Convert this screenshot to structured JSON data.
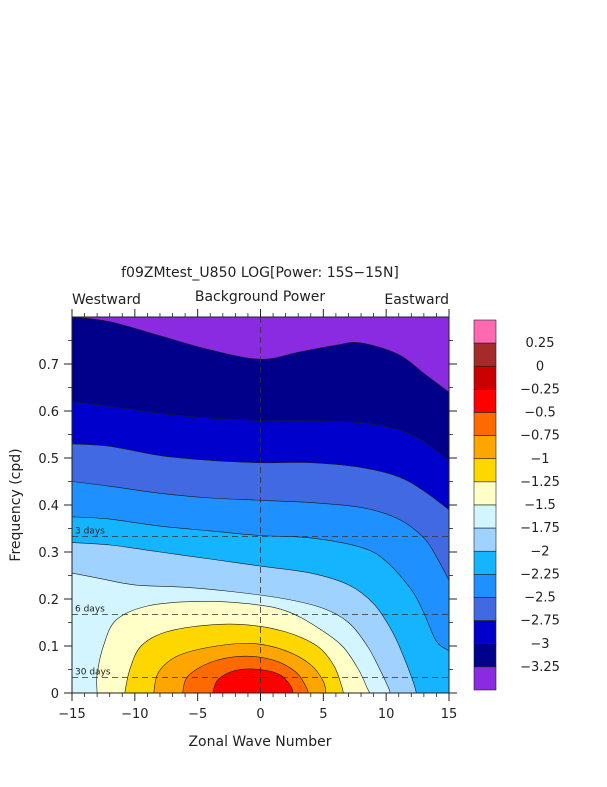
{
  "chart_data": {
    "type": "heatmap",
    "title": "f09ZMtest_U850 LOG[Power: 15S−15N]",
    "subtitle": "Background Power",
    "left_label": "Westward",
    "right_label": "Eastward",
    "xlabel": "Zonal Wave Number",
    "ylabel": "Frequency (cpd)",
    "xlim": [
      -15,
      15
    ],
    "ylim": [
      0,
      0.8
    ],
    "x_ticks": [
      "−15",
      "−10",
      "−5",
      "0",
      "5",
      "10",
      "15"
    ],
    "x_tick_values": [
      -15,
      -10,
      -5,
      0,
      5,
      10,
      15
    ],
    "y_ticks": [
      "0",
      "0.1",
      "0.2",
      "0.3",
      "0.4",
      "0.5",
      "0.6",
      "0.7"
    ],
    "y_tick_values": [
      0,
      0.1,
      0.2,
      0.3,
      0.4,
      0.5,
      0.6,
      0.7
    ],
    "period_lines": [
      {
        "label": "3 days",
        "freq": 0.3333
      },
      {
        "label": "6 days",
        "freq": 0.1667
      },
      {
        "label": "30 days",
        "freq": 0.0333
      }
    ],
    "colorbar": {
      "labels": [
        "0.25",
        "0",
        "−0.25",
        "−0.5",
        "−0.75",
        "−1",
        "−1.25",
        "−1.5",
        "−1.75",
        "−2",
        "−2.25",
        "−2.5",
        "−2.75",
        "−3",
        "−3.25"
      ],
      "colors_top_to_bottom": [
        "#ff69b4",
        "#a52a2a",
        "#cd0000",
        "#ff0000",
        "#ff6a00",
        "#ffa500",
        "#ffd700",
        "#ffffc8",
        "#d2f5ff",
        "#a0d2ff",
        "#14b4ff",
        "#1e90ff",
        "#4169e1",
        "#0000cd",
        "#00008b",
        "#8a2be2"
      ]
    },
    "contour_levels": [
      0.0,
      -0.25,
      -0.5,
      -0.75,
      -1.0,
      -1.25,
      -1.5,
      -1.75,
      -2.0,
      -2.25,
      -2.5,
      -2.75,
      -3.0,
      -3.25
    ],
    "contours": [
      {
        "level": -3.25,
        "color": "#00008b",
        "lower": [
          [
            -15,
            0
          ],
          [
            15,
            0
          ]
        ],
        "upper": [
          [
            -15,
            0.8
          ],
          [
            -12,
            0.79
          ],
          [
            -8,
            0.76
          ],
          [
            -4,
            0.73
          ],
          [
            0,
            0.71
          ],
          [
            3,
            0.725
          ],
          [
            6,
            0.74
          ],
          [
            8,
            0.745
          ],
          [
            11,
            0.72
          ],
          [
            13,
            0.68
          ],
          [
            15,
            0.64
          ]
        ]
      },
      {
        "level": -3.0,
        "color": "#0000cd",
        "lower": [
          [
            -15,
            0
          ],
          [
            15,
            0
          ]
        ],
        "upper": [
          [
            -15,
            0.62
          ],
          [
            -12,
            0.61
          ],
          [
            -8,
            0.595
          ],
          [
            -4,
            0.585
          ],
          [
            0,
            0.58
          ],
          [
            4,
            0.58
          ],
          [
            8,
            0.575
          ],
          [
            11,
            0.56
          ],
          [
            13,
            0.535
          ],
          [
            15,
            0.495
          ]
        ]
      },
      {
        "level": -2.75,
        "color": "#4169e1",
        "lower": [
          [
            -15,
            0
          ],
          [
            15,
            0
          ]
        ],
        "upper": [
          [
            -15,
            0.53
          ],
          [
            -12,
            0.525
          ],
          [
            -8,
            0.505
          ],
          [
            -4,
            0.495
          ],
          [
            0,
            0.49
          ],
          [
            4,
            0.49
          ],
          [
            8,
            0.48
          ],
          [
            11,
            0.46
          ],
          [
            13,
            0.43
          ],
          [
            15,
            0.39
          ]
        ]
      },
      {
        "level": -2.5,
        "color": "#1e90ff",
        "lower": [
          [
            -15,
            0
          ],
          [
            15,
            0
          ]
        ],
        "upper": [
          [
            -15,
            0.45
          ],
          [
            -12,
            0.44
          ],
          [
            -8,
            0.425
          ],
          [
            -4,
            0.415
          ],
          [
            0,
            0.41
          ],
          [
            4,
            0.405
          ],
          [
            8,
            0.395
          ],
          [
            11,
            0.37
          ],
          [
            13,
            0.33
          ],
          [
            14,
            0.29
          ],
          [
            15,
            0.24
          ]
        ]
      },
      {
        "level": -2.25,
        "color": "#14b4ff",
        "lower": [
          [
            -15,
            0
          ],
          [
            15,
            0
          ]
        ],
        "upper": [
          [
            -15,
            0.375
          ],
          [
            -12,
            0.37
          ],
          [
            -8,
            0.355
          ],
          [
            -4,
            0.345
          ],
          [
            0,
            0.335
          ],
          [
            4,
            0.33
          ],
          [
            8,
            0.31
          ],
          [
            10,
            0.28
          ],
          [
            12,
            0.22
          ],
          [
            13,
            0.17
          ],
          [
            14,
            0.11
          ],
          [
            15,
            0.09
          ]
        ]
      },
      {
        "level": -2.0,
        "color": "#a0d2ff",
        "lower": [
          [
            -15,
            0
          ],
          [
            15,
            0
          ]
        ],
        "upper": [
          [
            -15,
            0.32
          ],
          [
            -12,
            0.315
          ],
          [
            -8,
            0.3
          ],
          [
            -4,
            0.285
          ],
          [
            0,
            0.27
          ],
          [
            4,
            0.255
          ],
          [
            7,
            0.23
          ],
          [
            9,
            0.19
          ],
          [
            10.5,
            0.13
          ],
          [
            11.5,
            0.07
          ],
          [
            12.2,
            0.02
          ],
          [
            12.4,
            0
          ]
        ]
      },
      {
        "level": -1.75,
        "color": "#d2f5ff",
        "lower": [
          [
            -15,
            0
          ],
          [
            15,
            0
          ]
        ],
        "upper": [
          [
            -15,
            0.255
          ],
          [
            -13,
            0.245
          ],
          [
            -10,
            0.23
          ],
          [
            -6,
            0.225
          ],
          [
            -2,
            0.215
          ],
          [
            2,
            0.2
          ],
          [
            5,
            0.18
          ],
          [
            7,
            0.15
          ],
          [
            8.5,
            0.1
          ],
          [
            9.5,
            0.05
          ],
          [
            10.2,
            0.01
          ],
          [
            10.3,
            0
          ]
        ]
      },
      {
        "level": -1.5,
        "color": "#ffffc8",
        "lower": [
          [
            -13,
            0
          ],
          [
            8.7,
            0
          ]
        ],
        "upper": [
          [
            -13,
            0
          ],
          [
            -13,
            0.04
          ],
          [
            -12.5,
            0.1
          ],
          [
            -11.5,
            0.155
          ],
          [
            -9,
            0.185
          ],
          [
            -5,
            0.195
          ],
          [
            -1,
            0.19
          ],
          [
            2,
            0.175
          ],
          [
            4.5,
            0.14
          ],
          [
            6.5,
            0.1
          ],
          [
            7.8,
            0.05
          ],
          [
            8.5,
            0.01
          ],
          [
            8.7,
            0
          ]
        ]
      },
      {
        "level": -1.25,
        "color": "#ffd700",
        "lower": [
          [
            -10.8,
            0
          ],
          [
            6.6,
            0
          ]
        ],
        "upper": [
          [
            -10.8,
            0
          ],
          [
            -10.4,
            0.05
          ],
          [
            -9.5,
            0.1
          ],
          [
            -7.5,
            0.13
          ],
          [
            -4,
            0.145
          ],
          [
            -1,
            0.145
          ],
          [
            2,
            0.13
          ],
          [
            4.5,
            0.1
          ],
          [
            5.8,
            0.06
          ],
          [
            6.4,
            0.02
          ],
          [
            6.6,
            0
          ]
        ]
      },
      {
        "level": -1.0,
        "color": "#ffa500",
        "lower": [
          [
            -8.5,
            0
          ],
          [
            5.2,
            0
          ]
        ],
        "upper": [
          [
            -8.5,
            0
          ],
          [
            -8.1,
            0.045
          ],
          [
            -6.5,
            0.08
          ],
          [
            -3.5,
            0.1
          ],
          [
            -0.5,
            0.105
          ],
          [
            2,
            0.09
          ],
          [
            4,
            0.06
          ],
          [
            5,
            0.025
          ],
          [
            5.2,
            0
          ]
        ]
      },
      {
        "level": -0.75,
        "color": "#ff6a00",
        "lower": [
          [
            -6.2,
            0
          ],
          [
            3.8,
            0
          ]
        ],
        "upper": [
          [
            -6.2,
            0
          ],
          [
            -5.8,
            0.035
          ],
          [
            -4,
            0.065
          ],
          [
            -1.5,
            0.078
          ],
          [
            1,
            0.07
          ],
          [
            2.8,
            0.045
          ],
          [
            3.6,
            0.015
          ],
          [
            3.8,
            0
          ]
        ]
      },
      {
        "level": -0.5,
        "color": "#ff0000",
        "lower": [
          [
            -3.8,
            0
          ],
          [
            2.6,
            0
          ]
        ],
        "upper": [
          [
            -3.8,
            0
          ],
          [
            -3.4,
            0.028
          ],
          [
            -2,
            0.048
          ],
          [
            0,
            0.05
          ],
          [
            1.6,
            0.038
          ],
          [
            2.4,
            0.015
          ],
          [
            2.6,
            0
          ]
        ]
      }
    ]
  }
}
